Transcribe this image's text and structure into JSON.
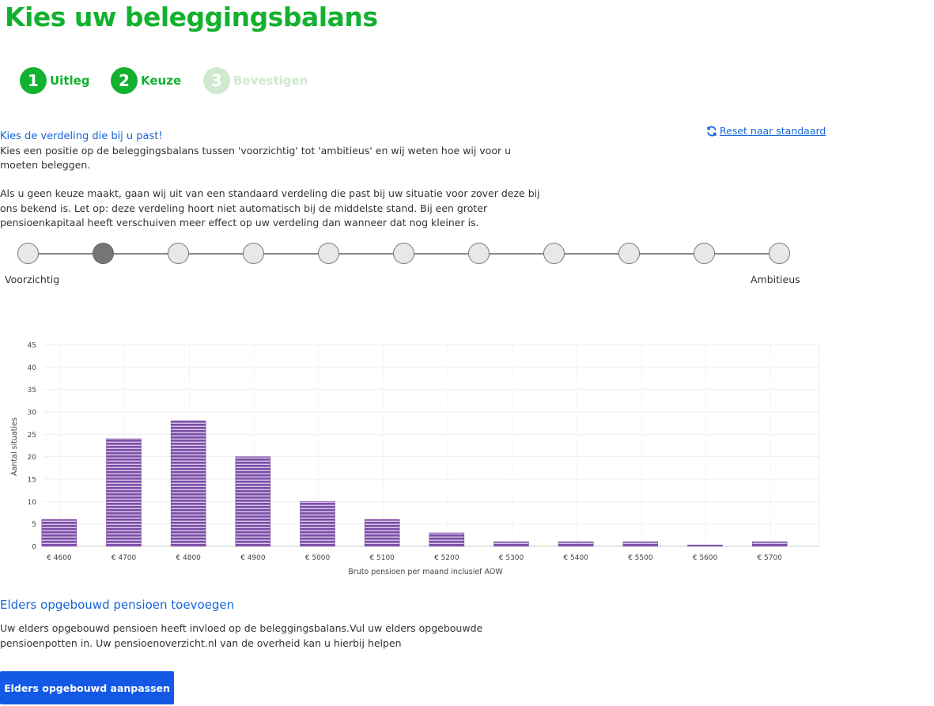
{
  "page": {
    "title": "Kies uw beleggingsbalans"
  },
  "steps": [
    {
      "number": "1",
      "label": "Uitleg",
      "state": "done"
    },
    {
      "number": "2",
      "label": "Keuze",
      "state": "active"
    },
    {
      "number": "3",
      "label": "Bevestigen",
      "state": "disabled"
    }
  ],
  "intro": {
    "heading": "Kies de verdeling die bij u past!",
    "paragraph1": "Kies een positie op de beleggingsbalans tussen 'voorzichtig' tot 'ambitieus' en wij weten hoe wij voor u moeten beleggen.",
    "paragraph2": "Als u geen keuze maakt, gaan wij uit van een standaard verdeling die past bij uw situatie voor zover deze bij ons bekend is. Let op: deze verdeling hoort niet automatisch bij de middelste stand. Bij een groter pensioenkapitaal heeft verschuiven meer effect op uw verdeling dan wanneer dat nog kleiner is."
  },
  "reset": {
    "label": "Reset naar standaard",
    "icon": "refresh-icon"
  },
  "balans": {
    "positions": 11,
    "selected_position": 2,
    "min_label": "Voorzichtig",
    "max_label": "Ambitieus"
  },
  "colors": {
    "brand_green": "#12b12f",
    "link_blue": "#1565d8",
    "button_blue": "#1359e6",
    "bar_purple": "#7b4fa6"
  },
  "chart_data": {
    "type": "bar",
    "categories": [
      "€ 4600",
      "€ 4700",
      "€ 4800",
      "€ 4900",
      "€ 5000",
      "€ 5100",
      "€ 5200",
      "€ 5300",
      "€ 5400",
      "€ 5500",
      "€ 5600",
      "€ 5700"
    ],
    "values": [
      6,
      24,
      28,
      20,
      10,
      6,
      3,
      1,
      1,
      1,
      0.3,
      1
    ],
    "xlabel": "Bruto pensioen per maand inclusief AOW",
    "ylabel": "Aantal situaties",
    "ylim": [
      0,
      45
    ],
    "yticks": [
      0,
      5,
      10,
      15,
      20,
      25,
      30,
      35,
      40,
      45
    ],
    "grid": true
  },
  "elders": {
    "heading": "Elders opgebouwd pensioen toevoegen",
    "text": "Uw elders opgebouwd pensioen heeft invloed op de beleggingsbalans.Vul uw elders opgebouwde pensioenpotten in. Uw pensioenoverzicht.nl van de overheid kan u hierbij helpen",
    "button_label": "Elders opgebouwd aanpassen"
  }
}
